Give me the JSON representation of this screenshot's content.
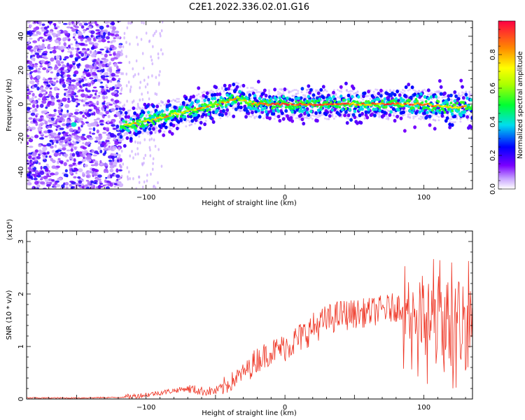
{
  "title": "C2E1.2022.336.02.01.G16",
  "chart_data": [
    {
      "type": "heatmap",
      "xlabel": "Height of straight line (km)",
      "ylabel": "Frequency (Hz)",
      "xlim": [
        -186,
        135
      ],
      "ylim": [
        -50,
        49
      ],
      "xticks": [
        -100,
        0,
        100
      ],
      "yticks": [
        -40,
        -20,
        0,
        20,
        40
      ],
      "ridge": {
        "description": "frequency of strongest spectral amplitude vs height",
        "x": [
          -118,
          -110,
          -100,
          -90,
          -80,
          -70,
          -60,
          -50,
          -40,
          -35,
          -30,
          -20,
          -10,
          0,
          20,
          40,
          60,
          80,
          100,
          120,
          135
        ],
        "y": [
          -13,
          -12,
          -10,
          -8,
          -6,
          -4,
          -2,
          0,
          2,
          4,
          2,
          0,
          0,
          0,
          0,
          0,
          0,
          0,
          0,
          -2,
          -1
        ]
      },
      "noise_region_x": [
        -186,
        -118
      ],
      "colorbar": {
        "label": "Normalized spectral amplitude",
        "range": [
          0,
          1
        ],
        "ticks": [
          "0.0",
          "0.2",
          "0.4",
          "0.6",
          "0.8"
        ]
      }
    },
    {
      "type": "line",
      "xlabel": "Height of straight line (km)",
      "ylabel": "SNR (10 * v/v)",
      "scale_note": "(x10⁴)",
      "xlim": [
        -186,
        135
      ],
      "ylim": [
        0,
        3.2
      ],
      "xticks": [
        -100,
        0,
        100
      ],
      "yticks": [
        0,
        1,
        2,
        3
      ],
      "color": "#ee3322",
      "series": [
        {
          "name": "SNR",
          "x": [
            -186,
            -150,
            -120,
            -110,
            -100,
            -90,
            -80,
            -70,
            -60,
            -50,
            -40,
            -30,
            -20,
            -10,
            0,
            10,
            20,
            30,
            40,
            50,
            60,
            70,
            80,
            90,
            100,
            110,
            120,
            130,
            135
          ],
          "y": [
            0.02,
            0.02,
            0.03,
            0.05,
            0.08,
            0.12,
            0.16,
            0.2,
            0.15,
            0.15,
            0.3,
            0.5,
            0.75,
            0.9,
            1.0,
            1.15,
            1.35,
            1.5,
            1.6,
            1.62,
            1.65,
            1.7,
            1.75,
            1.8,
            1.5,
            1.45,
            1.4,
            1.45,
            1.4
          ]
        }
      ]
    }
  ]
}
